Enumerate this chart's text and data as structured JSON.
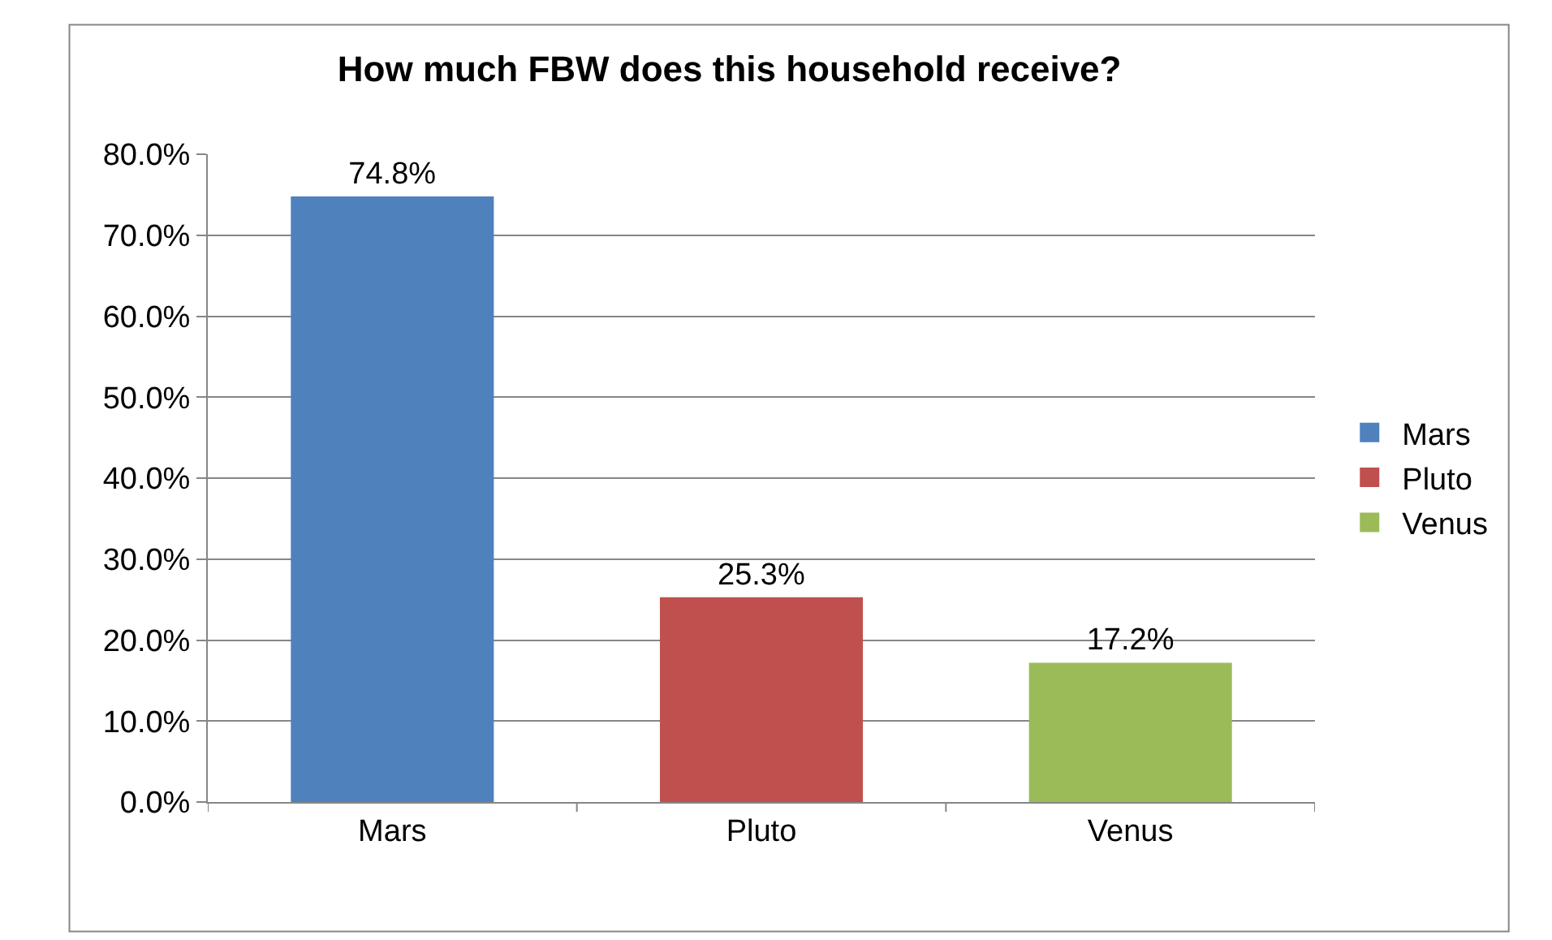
{
  "chart_data": {
    "type": "bar",
    "title": "How much FBW does this household receive?",
    "categories": [
      "Mars",
      "Pluto",
      "Venus"
    ],
    "series": [
      {
        "name": "Mars",
        "color": "#4f81bd",
        "values": [
          74.8,
          null,
          null
        ],
        "value_labels": [
          "74.8%",
          null,
          null
        ]
      },
      {
        "name": "Pluto",
        "color": "#c0504d",
        "values": [
          null,
          25.3,
          null
        ],
        "value_labels": [
          null,
          "25.3%",
          null
        ]
      },
      {
        "name": "Venus",
        "color": "#9bbb59",
        "values": [
          null,
          null,
          17.2
        ],
        "value_labels": [
          null,
          null,
          "17.2%"
        ]
      }
    ],
    "ylim": [
      0,
      80
    ],
    "yticks": [
      {
        "value": 0,
        "label": "0.0%"
      },
      {
        "value": 10,
        "label": "10.0%"
      },
      {
        "value": 20,
        "label": "20.0%"
      },
      {
        "value": 30,
        "label": "30.0%"
      },
      {
        "value": 40,
        "label": "40.0%"
      },
      {
        "value": 50,
        "label": "50.0%"
      },
      {
        "value": 60,
        "label": "60.0%"
      },
      {
        "value": 70,
        "label": "70.0%"
      },
      {
        "value": 80,
        "label": "80.0%"
      }
    ],
    "grid": "y",
    "legend": "right"
  }
}
